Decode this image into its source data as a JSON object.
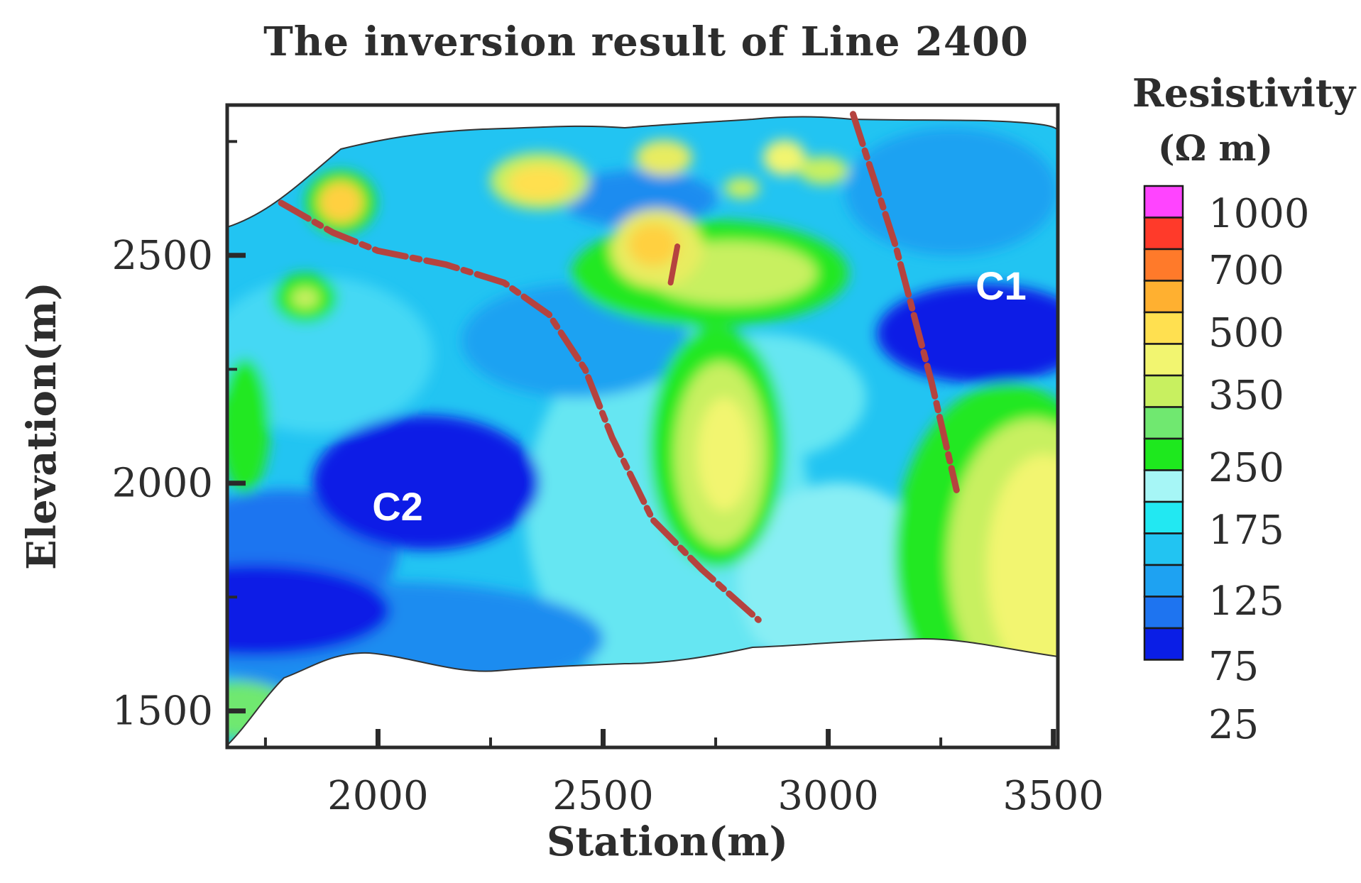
{
  "chart_data": {
    "type": "heatmap",
    "title": "The inversion result of Line 2400",
    "xlabel": "Station(m)",
    "ylabel": "Elevation(m)",
    "xlim": [
      1665,
      3510
    ],
    "ylim": [
      1420,
      2830
    ],
    "x_ticks": [
      2000,
      2500,
      3000,
      3500
    ],
    "y_ticks": [
      1500,
      2000,
      2500
    ],
    "colorbar": {
      "title": "Resistivity",
      "unit": "(Ω m)",
      "tick_labels": [
        "1000",
        "700",
        "500",
        "350",
        "250",
        "175",
        "125",
        "75",
        "25"
      ],
      "colors": [
        "#ff44ff",
        "#ff3a2a",
        "#ff7a2a",
        "#ffb030",
        "#ffe050",
        "#f2f570",
        "#c8f060",
        "#70e870",
        "#1ee81e",
        "#a6f6f6",
        "#22e8f2",
        "#22c4f2",
        "#1ea2f2",
        "#1e74f0",
        "#0a1ee6"
      ]
    },
    "annotations": [
      {
        "text": "C1",
        "x": 3325,
        "y": 2480
      },
      {
        "text": "C2",
        "x": 2000,
        "y": 1970
      }
    ],
    "faults": [
      [
        [
          1785,
          2615
        ],
        [
          1900,
          2550
        ],
        [
          2000,
          2510
        ],
        [
          2150,
          2480
        ],
        [
          2280,
          2440
        ],
        [
          2380,
          2370
        ],
        [
          2460,
          2250
        ],
        [
          2520,
          2100
        ],
        [
          2610,
          1920
        ],
        [
          2720,
          1810
        ],
        [
          2845,
          1700
        ]
      ],
      [
        [
          3055,
          2810
        ],
        [
          3150,
          2520
        ],
        [
          3230,
          2220
        ],
        [
          3285,
          1985
        ]
      ],
      [
        [
          2665,
          2520
        ],
        [
          2650,
          2440
        ]
      ]
    ]
  }
}
